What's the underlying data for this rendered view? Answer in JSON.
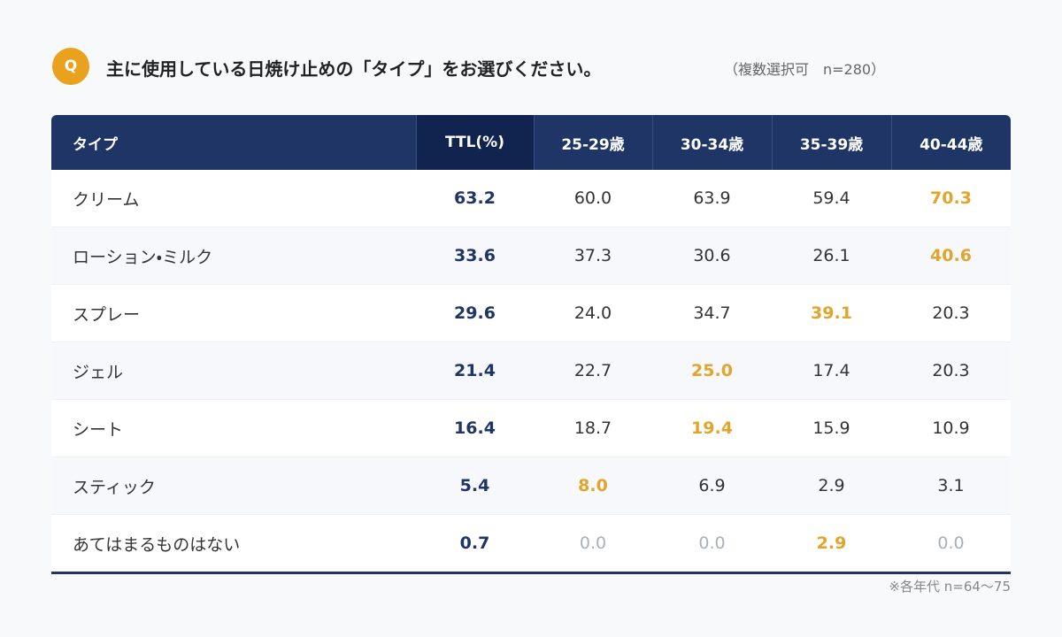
{
  "header": {
    "badge": "Q",
    "title": "主に使用している日焼け止めの「タイプ」をお選びください。",
    "note": "（複数選択可　n=280）"
  },
  "table": {
    "columns": [
      "タイプ",
      "TTL(%)",
      "25-29歳",
      "30-34歳",
      "35-39歳",
      "40-44歳"
    ],
    "rows": [
      [
        "クリーム",
        "63.2",
        "60.0",
        "63.9",
        "59.4",
        "70.3"
      ],
      [
        "ローション・ミルク",
        "33.6",
        "37.3",
        "30.6",
        "26.1",
        "40.6"
      ],
      [
        "スプレー",
        "29.6",
        "24.0",
        "34.7",
        "39.1",
        "20.3"
      ],
      [
        "ジェル",
        "21.4",
        "22.7",
        "25.0",
        "17.4",
        "20.3"
      ],
      [
        "シート",
        "16.4",
        "18.7",
        "19.4",
        "15.9",
        "10.9"
      ],
      [
        "スティック",
        "5.4",
        "8.0",
        "6.9",
        "2.9",
        "3.1"
      ],
      [
        "あてはまるものはない",
        "0.7",
        "0.0",
        "0.0",
        "2.9",
        "0.0"
      ]
    ]
  },
  "footnote": "※各年代 n=64～75"
}
